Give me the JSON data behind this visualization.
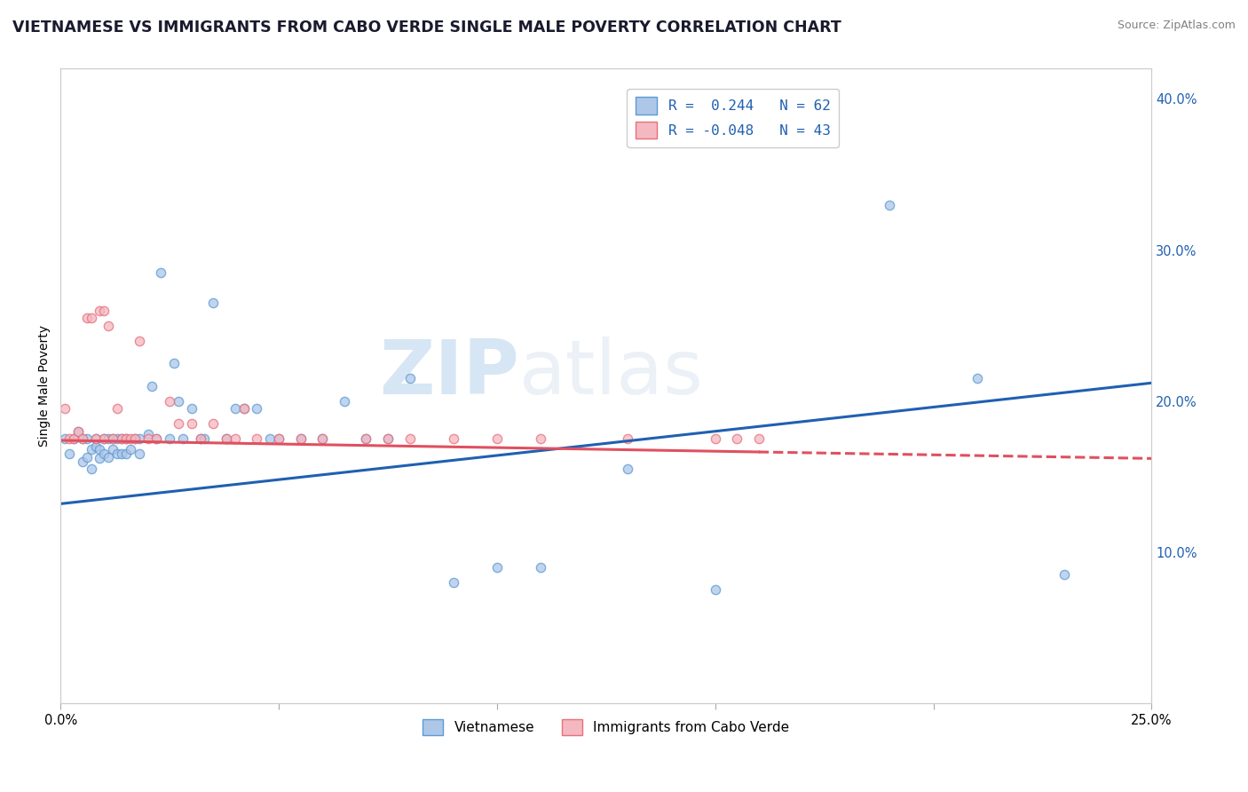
{
  "title": "VIETNAMESE VS IMMIGRANTS FROM CABO VERDE SINGLE MALE POVERTY CORRELATION CHART",
  "source": "Source: ZipAtlas.com",
  "ylabel": "Single Male Poverty",
  "xlim": [
    0.0,
    0.25
  ],
  "ylim": [
    0.0,
    0.42
  ],
  "xticks": [
    0.0,
    0.05,
    0.1,
    0.15,
    0.2,
    0.25
  ],
  "yticks_right": [
    0.0,
    0.1,
    0.2,
    0.3,
    0.4
  ],
  "legend_r1": "R =  0.244   N = 62",
  "legend_r2": "R = -0.048   N = 43",
  "bottom_legend": [
    "Vietnamese",
    "Immigrants from Cabo Verde"
  ],
  "blue_scatter_x": [
    0.001,
    0.002,
    0.003,
    0.004,
    0.005,
    0.005,
    0.006,
    0.006,
    0.007,
    0.007,
    0.008,
    0.008,
    0.009,
    0.009,
    0.01,
    0.01,
    0.011,
    0.011,
    0.012,
    0.012,
    0.013,
    0.013,
    0.014,
    0.014,
    0.015,
    0.015,
    0.016,
    0.017,
    0.018,
    0.018,
    0.02,
    0.021,
    0.022,
    0.023,
    0.025,
    0.026,
    0.027,
    0.028,
    0.03,
    0.032,
    0.033,
    0.035,
    0.038,
    0.04,
    0.042,
    0.045,
    0.048,
    0.05,
    0.055,
    0.06,
    0.065,
    0.07,
    0.075,
    0.08,
    0.09,
    0.1,
    0.11,
    0.13,
    0.15,
    0.19,
    0.21,
    0.23
  ],
  "blue_scatter_y": [
    0.175,
    0.165,
    0.175,
    0.18,
    0.175,
    0.16,
    0.175,
    0.163,
    0.168,
    0.155,
    0.17,
    0.175,
    0.168,
    0.162,
    0.175,
    0.165,
    0.175,
    0.163,
    0.168,
    0.175,
    0.175,
    0.165,
    0.175,
    0.165,
    0.175,
    0.165,
    0.168,
    0.175,
    0.175,
    0.165,
    0.178,
    0.21,
    0.175,
    0.285,
    0.175,
    0.225,
    0.2,
    0.175,
    0.195,
    0.175,
    0.175,
    0.265,
    0.175,
    0.195,
    0.195,
    0.195,
    0.175,
    0.175,
    0.175,
    0.175,
    0.2,
    0.175,
    0.175,
    0.215,
    0.08,
    0.09,
    0.09,
    0.155,
    0.075,
    0.33,
    0.215,
    0.085
  ],
  "pink_scatter_x": [
    0.001,
    0.002,
    0.003,
    0.004,
    0.005,
    0.006,
    0.007,
    0.008,
    0.009,
    0.01,
    0.01,
    0.011,
    0.012,
    0.013,
    0.014,
    0.015,
    0.016,
    0.017,
    0.018,
    0.02,
    0.022,
    0.025,
    0.027,
    0.03,
    0.032,
    0.035,
    0.038,
    0.04,
    0.042,
    0.045,
    0.05,
    0.055,
    0.06,
    0.07,
    0.075,
    0.08,
    0.09,
    0.1,
    0.11,
    0.13,
    0.15,
    0.155,
    0.16
  ],
  "pink_scatter_y": [
    0.195,
    0.175,
    0.175,
    0.18,
    0.175,
    0.255,
    0.255,
    0.175,
    0.26,
    0.26,
    0.175,
    0.25,
    0.175,
    0.195,
    0.175,
    0.175,
    0.175,
    0.175,
    0.24,
    0.175,
    0.175,
    0.2,
    0.185,
    0.185,
    0.175,
    0.185,
    0.175,
    0.175,
    0.195,
    0.175,
    0.175,
    0.175,
    0.175,
    0.175,
    0.175,
    0.175,
    0.175,
    0.175,
    0.175,
    0.175,
    0.175,
    0.175,
    0.175
  ],
  "blue_line_x": [
    0.0,
    0.25
  ],
  "blue_line_y": [
    0.132,
    0.212
  ],
  "pink_line_x": [
    0.0,
    0.25
  ],
  "pink_line_y": [
    0.174,
    0.162
  ],
  "scatter_alpha": 0.75,
  "scatter_size": 55,
  "blue_edge": "#5b9bd5",
  "pink_edge": "#e8707a",
  "blue_face": "#aec6e8",
  "pink_face": "#f4b8c1",
  "blue_line_color": "#2060b0",
  "pink_line_color": "#e05060",
  "grid_color": "#c8c8c8",
  "background_color": "#ffffff",
  "title_fontsize": 12.5,
  "axis_label_fontsize": 10,
  "tick_fontsize": 10.5,
  "watermark_zip": "ZIP",
  "watermark_atlas": "atlas",
  "legend_text_color": "#2060b0"
}
